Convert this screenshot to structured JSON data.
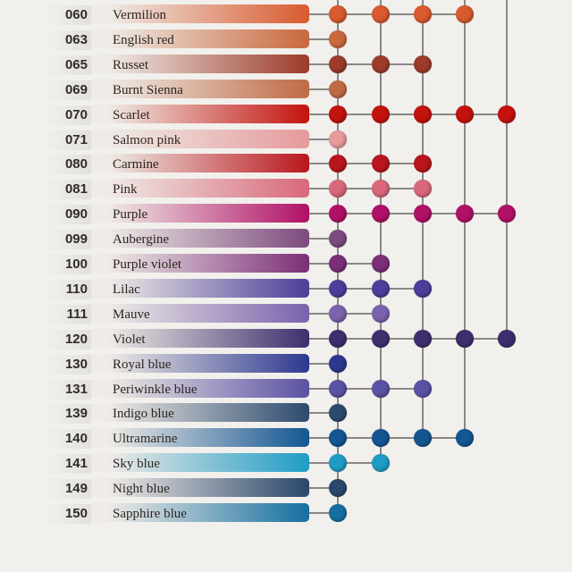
{
  "rows": [
    {
      "code": "060",
      "name": "Vermilion",
      "color": "#d85a2e",
      "dots": 4
    },
    {
      "code": "063",
      "name": "English red",
      "color": "#c9683d",
      "dots": 1
    },
    {
      "code": "065",
      "name": "Russet",
      "color": "#9c3b2a",
      "dots": 3
    },
    {
      "code": "069",
      "name": "Burnt Sienna",
      "color": "#c06a45",
      "dots": 1
    },
    {
      "code": "070",
      "name": "Scarlet",
      "color": "#c4120e",
      "dots": 5
    },
    {
      "code": "071",
      "name": "Salmon pink",
      "color": "#e69a9c",
      "dots": 1
    },
    {
      "code": "080",
      "name": "Carmine",
      "color": "#b8161c",
      "dots": 3
    },
    {
      "code": "081",
      "name": "Pink",
      "color": "#d9687a",
      "dots": 3
    },
    {
      "code": "090",
      "name": "Purple",
      "color": "#b01066",
      "dots": 5
    },
    {
      "code": "099",
      "name": "Aubergine",
      "color": "#7c4a7e",
      "dots": 1
    },
    {
      "code": "100",
      "name": "Purple violet",
      "color": "#7a2f78",
      "dots": 2
    },
    {
      "code": "110",
      "name": "Lilac",
      "color": "#4c3e9a",
      "dots": 3
    },
    {
      "code": "111",
      "name": "Mauve",
      "color": "#7a62ad",
      "dots": 2
    },
    {
      "code": "120",
      "name": "Violet",
      "color": "#3d2f6e",
      "dots": 5
    },
    {
      "code": "130",
      "name": "Royal blue",
      "color": "#2c3890",
      "dots": 1
    },
    {
      "code": "131",
      "name": "Periwinkle blue",
      "color": "#5a52a3",
      "dots": 3
    },
    {
      "code": "139",
      "name": "Indigo blue",
      "color": "#2c4a6e",
      "dots": 1
    },
    {
      "code": "140",
      "name": "Ultramarine",
      "color": "#135692",
      "dots": 4
    },
    {
      "code": "141",
      "name": "Sky blue",
      "color": "#1f9cc5",
      "dots": 2
    },
    {
      "code": "149",
      "name": "Night blue",
      "color": "#2b476b",
      "dots": 1
    },
    {
      "code": "150",
      "name": "Sapphire blue",
      "color": "#146fa0",
      "dots": 1
    }
  ],
  "colors": {
    "connector": "#8a8785",
    "background": "#f1f0ec",
    "band_fade_start": "#efebe6"
  }
}
